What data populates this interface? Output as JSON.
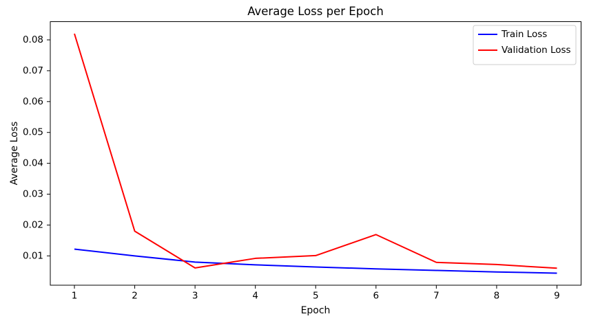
{
  "chart_data": {
    "type": "line",
    "title": "Average Loss per Epoch",
    "xlabel": "Epoch",
    "ylabel": "Average Loss",
    "x": [
      1,
      2,
      3,
      4,
      5,
      6,
      7,
      8,
      9
    ],
    "series": [
      {
        "name": "Train Loss",
        "color": "#0000ff",
        "values": [
          0.0122,
          0.01,
          0.008,
          0.0071,
          0.0064,
          0.0058,
          0.0053,
          0.0048,
          0.0044
        ]
      },
      {
        "name": "Validation Loss",
        "color": "#ff0000",
        "values": [
          0.082,
          0.018,
          0.0061,
          0.0092,
          0.0101,
          0.0169,
          0.0079,
          0.0072,
          0.006
        ]
      }
    ],
    "xlim": [
      0.6,
      9.4
    ],
    "ylim": [
      0.0005,
      0.0859
    ],
    "xticks": [
      1,
      2,
      3,
      4,
      5,
      6,
      7,
      8,
      9
    ],
    "xticklabels": [
      "1",
      "2",
      "3",
      "4",
      "5",
      "6",
      "7",
      "8",
      "9"
    ],
    "yticks": [
      0.01,
      0.02,
      0.03,
      0.04,
      0.05,
      0.06,
      0.07,
      0.08
    ],
    "yticklabels": [
      "0.01",
      "0.02",
      "0.03",
      "0.04",
      "0.05",
      "0.06",
      "0.07",
      "0.08"
    ],
    "grid": false,
    "legend_position": "upper right",
    "colors": {
      "spine": "#000000",
      "text": "#000000",
      "legend_border": "#cccccc",
      "background": "#ffffff"
    }
  }
}
